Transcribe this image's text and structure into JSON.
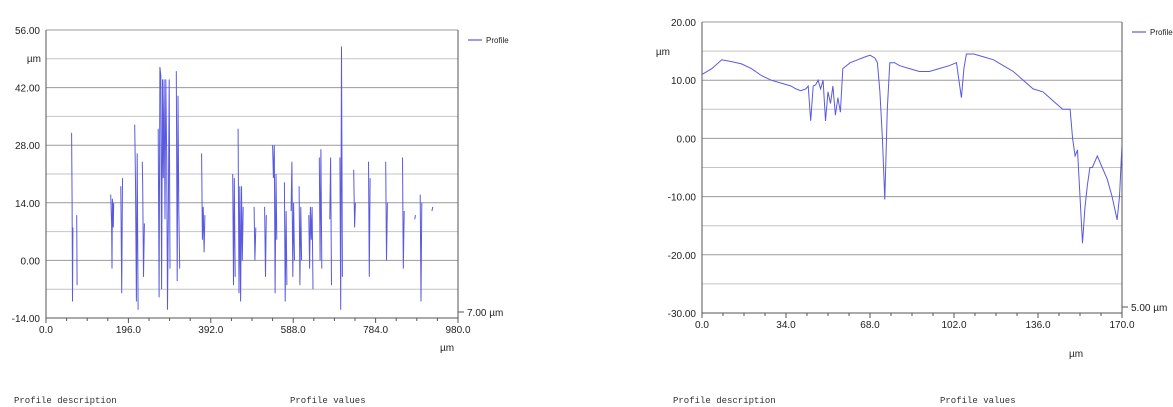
{
  "chart_data": [
    {
      "type": "line",
      "ylabel": "µm",
      "xlabel": "µm",
      "ylim": [
        -14,
        56
      ],
      "xlim": [
        0,
        980
      ],
      "y_ticks": [
        "56.00",
        "42.00",
        "28.00",
        "14.00",
        "0.00",
        "-14.00"
      ],
      "x_ticks": [
        "0.0",
        "196.0",
        "392.0",
        "588.0",
        "784.0",
        "980.0"
      ],
      "grid": true,
      "legend": "top-right",
      "scale_label": "7.00 µm",
      "series": [
        {
          "name": "Profile",
          "color": "#5a5ae0",
          "segments": [
            [
              [
                61,
                31
              ],
              [
                62,
                14
              ],
              [
                63,
                -10
              ],
              [
                64,
                8
              ]
            ],
            [
              [
                73,
                11
              ],
              [
                74,
                -6
              ]
            ],
            [
              [
                154,
                16
              ],
              [
                156,
                9
              ],
              [
                157,
                -2
              ],
              [
                158,
                15
              ],
              [
                160,
                8
              ],
              [
                161,
                14
              ]
            ],
            [
              [
                178,
                18
              ],
              [
                180,
                -8
              ],
              [
                182,
                20
              ]
            ],
            [
              [
                211,
                33
              ],
              [
                213,
                19
              ],
              [
                215,
                -10
              ],
              [
                217,
                26
              ],
              [
                219,
                -12
              ]
            ],
            [
              [
                229,
                24
              ],
              [
                230,
                18
              ],
              [
                232,
                -4
              ],
              [
                234,
                9
              ]
            ],
            [
              [
                267,
                32
              ],
              [
                269,
                -9
              ],
              [
                271,
                47
              ],
              [
                273,
                45
              ],
              [
                275,
                -7
              ],
              [
                277,
                44
              ],
              [
                279,
                20
              ],
              [
                281,
                44
              ],
              [
                283,
                10
              ],
              [
                285,
                44
              ],
              [
                287,
                25
              ],
              [
                289,
                -12
              ],
              [
                291,
                10
              ],
              [
                293,
                44
              ],
              [
                295,
                -2
              ]
            ],
            [
              [
                310,
                46
              ],
              [
                312,
                -5
              ],
              [
                314,
                40
              ],
              [
                316,
                12
              ],
              [
                318,
                -2
              ]
            ],
            [
              [
                370,
                26
              ],
              [
                372,
                5
              ],
              [
                374,
                13
              ],
              [
                376,
                2
              ],
              [
                378,
                11
              ]
            ],
            [
              [
                444,
                21
              ],
              [
                446,
                -6
              ],
              [
                448,
                20
              ],
              [
                450,
                -4
              ]
            ],
            [
              [
                457,
                32
              ],
              [
                459,
                -8
              ],
              [
                461,
                18
              ],
              [
                463,
                -10
              ],
              [
                465,
                18
              ],
              [
                467,
                0
              ],
              [
                469,
                13
              ]
            ],
            [
              [
                495,
                13
              ],
              [
                497,
                0
              ],
              [
                499,
                8
              ]
            ],
            [
              [
                520,
                13
              ],
              [
                522,
                -4
              ],
              [
                524,
                11
              ]
            ],
            [
              [
                539,
                28
              ],
              [
                541,
                20
              ],
              [
                543,
                28
              ],
              [
                545,
                -8
              ],
              [
                547,
                21
              ],
              [
                549,
                5
              ]
            ],
            [
              [
                567,
                19
              ],
              [
                569,
                -10
              ],
              [
                571,
                12
              ],
              [
                573,
                -6
              ]
            ],
            [
              [
                583,
                12
              ],
              [
                585,
                24
              ],
              [
                587,
                -4
              ],
              [
                589,
                14
              ],
              [
                591,
                0
              ]
            ],
            [
              [
                602,
                18
              ],
              [
                604,
                -6
              ],
              [
                606,
                13
              ],
              [
                608,
                0
              ]
            ],
            [
              [
                625,
                11
              ],
              [
                627,
                -2
              ],
              [
                629,
                13
              ],
              [
                631,
                5
              ],
              [
                633,
                13
              ],
              [
                635,
                -7
              ]
            ],
            [
              [
                650,
                25
              ],
              [
                652,
                0
              ],
              [
                654,
                27
              ],
              [
                656,
                -2
              ]
            ],
            [
              [
                675,
                10
              ],
              [
                677,
                25
              ],
              [
                679,
                -6
              ]
            ],
            [
              [
                699,
                25
              ],
              [
                701,
                -12
              ],
              [
                703,
                52
              ],
              [
                705,
                -4
              ]
            ],
            [
              [
                732,
                22
              ],
              [
                734,
                8
              ],
              [
                736,
                14
              ]
            ],
            [
              [
                767,
                24
              ],
              [
                769,
                -4
              ],
              [
                771,
                20
              ]
            ],
            [
              [
                808,
                24
              ],
              [
                810,
                0
              ],
              [
                812,
                14
              ]
            ],
            [
              [
                848,
                25
              ],
              [
                850,
                -2
              ],
              [
                852,
                12
              ]
            ],
            [
              [
                877,
                10
              ],
              [
                879,
                11
              ]
            ],
            [
              [
                890,
                16
              ],
              [
                892,
                -10
              ],
              [
                894,
                14
              ]
            ],
            [
              [
                918,
                12
              ],
              [
                920,
                13
              ]
            ]
          ]
        }
      ]
    },
    {
      "type": "line",
      "ylabel": "µm",
      "xlabel": "µm",
      "ylim": [
        -30,
        20
      ],
      "xlim": [
        0,
        170
      ],
      "y_ticks": [
        "20.00",
        "10.00",
        "0.00",
        "-10.00",
        "-20.00",
        "-30.00"
      ],
      "x_ticks": [
        "0.0",
        "34.0",
        "68.0",
        "102.0",
        "136.0",
        "170.0"
      ],
      "grid": true,
      "legend": "top-right",
      "scale_label": "5.00 µm",
      "series": [
        {
          "name": "Profile",
          "color": "#5a5ae0",
          "points": [
            [
              0,
              11
            ],
            [
              4,
              12
            ],
            [
              8,
              13.5
            ],
            [
              12,
              13.2
            ],
            [
              16,
              12.8
            ],
            [
              20,
              12
            ],
            [
              24,
              10.8
            ],
            [
              28,
              10
            ],
            [
              32,
              9.5
            ],
            [
              36,
              9
            ],
            [
              38,
              8.5
            ],
            [
              40,
              8.2
            ],
            [
              42,
              8.5
            ],
            [
              43,
              9
            ],
            [
              44,
              3
            ],
            [
              45,
              9
            ],
            [
              46,
              9.2
            ],
            [
              47,
              10
            ],
            [
              48,
              8.5
            ],
            [
              49,
              10
            ],
            [
              50,
              3
            ],
            [
              51,
              8
            ],
            [
              52,
              6
            ],
            [
              53,
              9
            ],
            [
              54,
              4
            ],
            [
              55,
              7
            ],
            [
              56,
              4.5
            ],
            [
              57,
              12
            ],
            [
              60,
              13
            ],
            [
              63,
              13.5
            ],
            [
              66,
              14
            ],
            [
              68,
              14.3
            ],
            [
              70,
              13.8
            ],
            [
              71,
              13
            ],
            [
              72,
              8
            ],
            [
              73,
              0
            ],
            [
              74,
              -10.5
            ],
            [
              75,
              5
            ],
            [
              76,
              13
            ],
            [
              78,
              13
            ],
            [
              80,
              12.5
            ],
            [
              84,
              12
            ],
            [
              88,
              11.5
            ],
            [
              92,
              11.5
            ],
            [
              96,
              12
            ],
            [
              100,
              12.5
            ],
            [
              103,
              13
            ],
            [
              104,
              10
            ],
            [
              105,
              7
            ],
            [
              106,
              12
            ],
            [
              107,
              14.5
            ],
            [
              110,
              14.5
            ],
            [
              114,
              14
            ],
            [
              118,
              13.5
            ],
            [
              122,
              12.5
            ],
            [
              126,
              11.5
            ],
            [
              130,
              10
            ],
            [
              134,
              8.5
            ],
            [
              138,
              8
            ],
            [
              142,
              6.5
            ],
            [
              146,
              5
            ],
            [
              149,
              5
            ],
            [
              150,
              0
            ],
            [
              151,
              -3
            ],
            [
              152,
              -2
            ],
            [
              153,
              -10
            ],
            [
              154,
              -18
            ],
            [
              155,
              -12
            ],
            [
              156,
              -8
            ],
            [
              157,
              -5
            ],
            [
              158,
              -5
            ],
            [
              160,
              -3
            ],
            [
              162,
              -5
            ],
            [
              164,
              -7
            ],
            [
              166,
              -10
            ],
            [
              168,
              -14
            ],
            [
              169,
              -10
            ],
            [
              170,
              -1
            ]
          ]
        }
      ]
    }
  ],
  "footers": [
    {
      "description": "Profile description",
      "values": "Profile values"
    },
    {
      "description": "Profile description",
      "values": "Profile values"
    }
  ]
}
